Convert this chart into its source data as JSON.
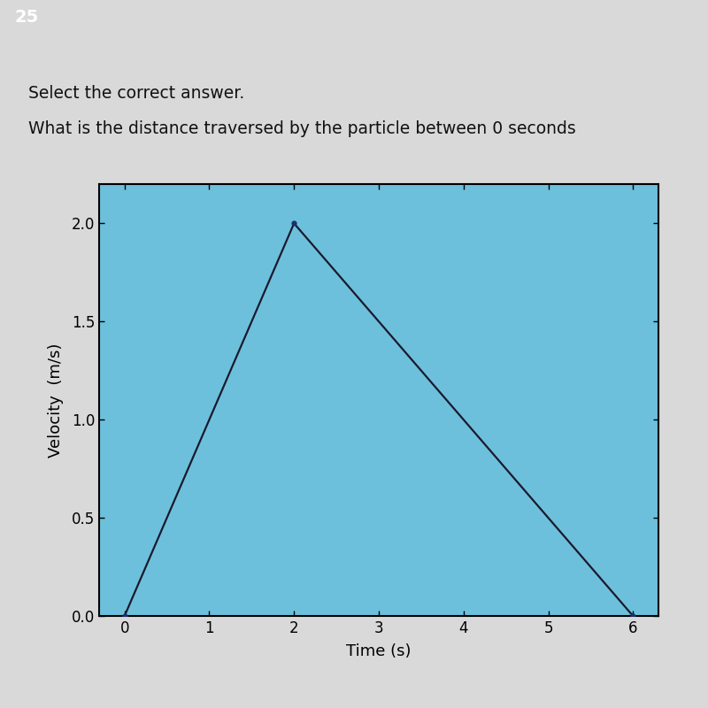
{
  "title_line1": "Select the correct answer.",
  "title_line2": "What is the distance traversed by the particle between 0 seconds",
  "xlabel": "Time (s)",
  "ylabel": "Velocity  (m/s)",
  "x_data": [
    0,
    2,
    6
  ],
  "y_data": [
    0,
    2.0,
    0
  ],
  "xticks": [
    0,
    1,
    2,
    3,
    4,
    5,
    6
  ],
  "yticks": [
    0.0,
    0.5,
    1.0,
    1.5,
    2.0
  ],
  "line_color": "#1a1a2e",
  "marker_color": "#1a3070",
  "plot_bg_color": "#6dc0db",
  "outer_plot_bg": "#8ecfe3",
  "page_number": "25",
  "marker_size": 7,
  "line_width": 1.6,
  "fig_bg_color": "#d9d9d9",
  "text_color": "#111111",
  "title_fontsize": 13.5,
  "label_fontsize": 13,
  "tick_fontsize": 12,
  "ylabel_fontsize": 13,
  "page_tab_color": "#555555"
}
